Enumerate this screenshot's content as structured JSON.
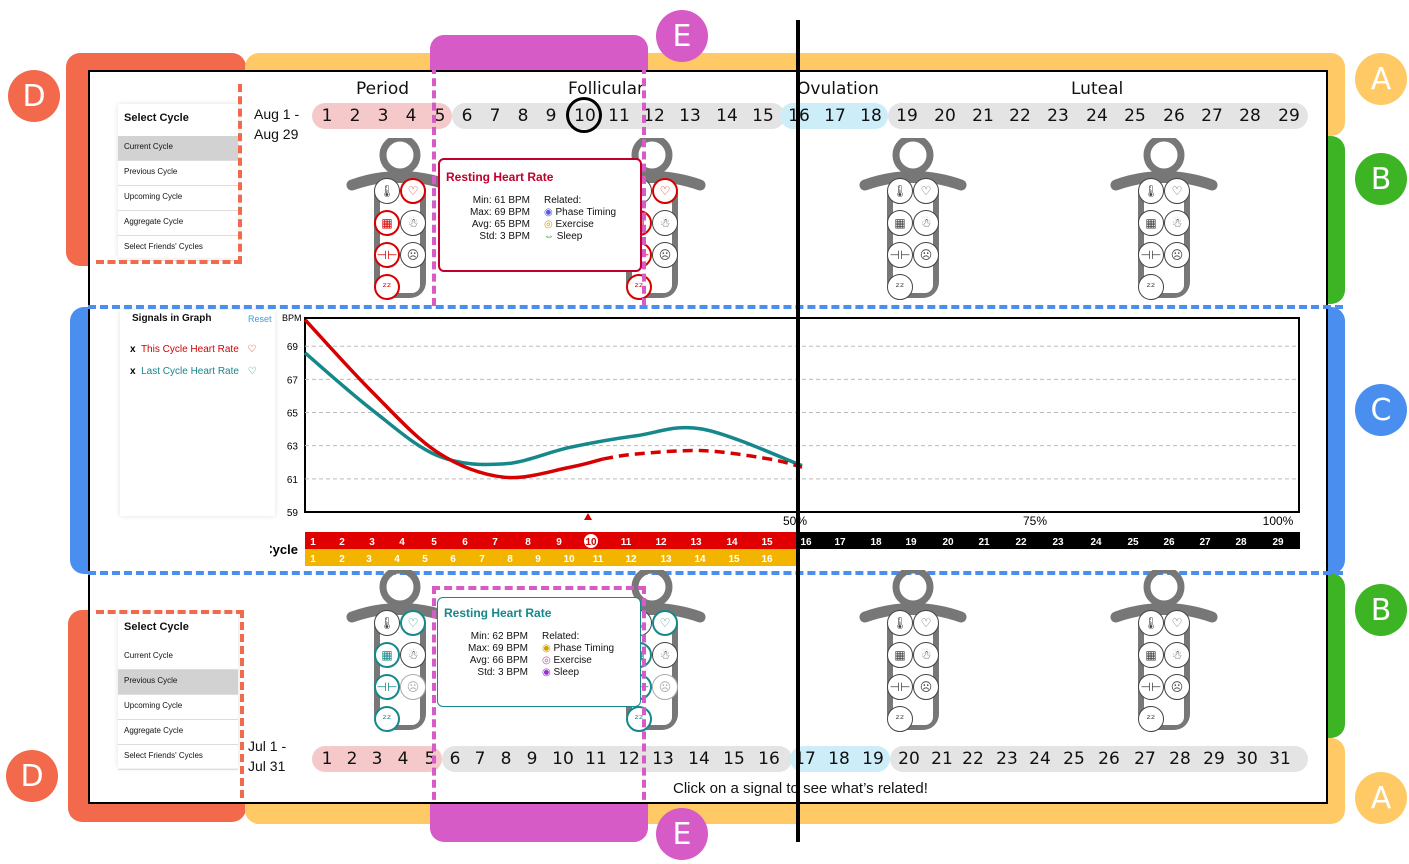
{
  "labels": {
    "a": "A",
    "b": "B",
    "c": "C",
    "d": "D",
    "e": "E"
  },
  "colors": {
    "period": "#f5c9c9",
    "ovulation": "#cdeef8",
    "neutral": "#e4e4e4",
    "red": "#d60000",
    "teal": "#16878a",
    "orange": "#ffc966",
    "green": "#3cb423",
    "blue": "#4a8ff0",
    "pink": "#d65bc6",
    "dlabel": "#f26a4b"
  },
  "top": {
    "date_range_1": "Aug 1 -",
    "date_range_2": "Aug 29",
    "phases": [
      "Period",
      "Follicular",
      "Ovulation",
      "Luteal"
    ],
    "days": [
      "1",
      "2",
      "3",
      "4",
      "5",
      "6",
      "7",
      "8",
      "9",
      "10",
      "11",
      "12",
      "13",
      "14",
      "15",
      "16",
      "17",
      "18",
      "19",
      "20",
      "21",
      "22",
      "23",
      "24",
      "25",
      "26",
      "27",
      "28",
      "29"
    ],
    "selected_day": "10",
    "select_panel": {
      "title": "Select Cycle",
      "options": [
        "Current Cycle",
        "Previous Cycle",
        "Upcoming Cycle",
        "Aggregate Cycle",
        "Select Friends' Cycles"
      ],
      "selected": "Current Cycle"
    },
    "tooltip": {
      "title": "Resting Heart Rate",
      "min": "Min: 61 BPM",
      "max": "Max: 69 BPM",
      "avg": "Avg: 65 BPM",
      "std": "Std: 3 BPM",
      "related_title": "Related:",
      "related": [
        "Phase Timing",
        "Exercise",
        "Sleep"
      ]
    }
  },
  "bottom": {
    "date_range_1": "Jul 1 -",
    "date_range_2": "Jul 31",
    "days": [
      "1",
      "2",
      "3",
      "4",
      "5",
      "6",
      "7",
      "8",
      "9",
      "10",
      "11",
      "12",
      "13",
      "14",
      "15",
      "16",
      "17",
      "18",
      "19",
      "20",
      "21",
      "22",
      "23",
      "24",
      "25",
      "26",
      "27",
      "28",
      "29",
      "30",
      "31"
    ],
    "hint": "Click on a signal to see what’s related!",
    "select_panel": {
      "title": "Select Cycle",
      "options": [
        "Current Cycle",
        "Previous Cycle",
        "Upcoming Cycle",
        "Aggregate Cycle",
        "Select Friends' Cycles"
      ],
      "selected": "Previous Cycle"
    },
    "tooltip": {
      "title": "Resting Heart Rate",
      "min": "Min: 62 BPM",
      "max": "Max: 69 BPM",
      "avg": "Avg: 66 BPM",
      "std": "Std: 3 BPM",
      "related_title": "Related:",
      "related": [
        "Phase Timing",
        "Exercise",
        "Sleep"
      ]
    }
  },
  "signals": {
    "title": "Signals in Graph",
    "reset": "Reset",
    "items": [
      {
        "remove": "x",
        "label": "This Cycle Heart Rate"
      },
      {
        "remove": "x",
        "label": "Last Cycle Heart Rate"
      }
    ]
  },
  "chart_data": {
    "type": "line",
    "ylabel": "BPM",
    "yticks": [
      "69",
      "67",
      "65",
      "63",
      "61",
      "59"
    ],
    "ylim": [
      59,
      70.7
    ],
    "xlim": [
      1,
      31
    ],
    "percent_labels": [
      "50%",
      "75%",
      "100%"
    ],
    "xlabel": "Day In Cycle",
    "series": [
      {
        "name": "This Cycle Heart Rate",
        "x": [
          1,
          3,
          5,
          7,
          9,
          10
        ],
        "values": [
          70.6,
          66.3,
          62.6,
          61.1,
          61.7,
          62.2
        ]
      },
      {
        "name": "This Cycle Heart Rate (projected)",
        "x": [
          10,
          11,
          13,
          15,
          16
        ],
        "values": [
          62.2,
          62.5,
          62.7,
          62.2,
          61.7
        ]
      },
      {
        "name": "Last Cycle Heart Rate",
        "x": [
          1,
          3,
          5,
          7,
          9,
          11,
          13,
          16
        ],
        "values": [
          68.6,
          65.2,
          62.4,
          61.9,
          62.9,
          63.6,
          64.0,
          61.8
        ]
      }
    ],
    "red_days": [
      "1",
      "2",
      "3",
      "4",
      "5",
      "6",
      "7",
      "8",
      "9",
      "10",
      "11",
      "12",
      "13",
      "14",
      "15"
    ],
    "black_days": [
      "16",
      "17",
      "18",
      "19",
      "20",
      "21",
      "22",
      "23",
      "24",
      "25",
      "26",
      "27",
      "28",
      "29"
    ],
    "yellow_days": [
      "1",
      "2",
      "3",
      "4",
      "5",
      "6",
      "7",
      "8",
      "9",
      "10",
      "11",
      "12",
      "13",
      "14",
      "15",
      "16"
    ]
  }
}
